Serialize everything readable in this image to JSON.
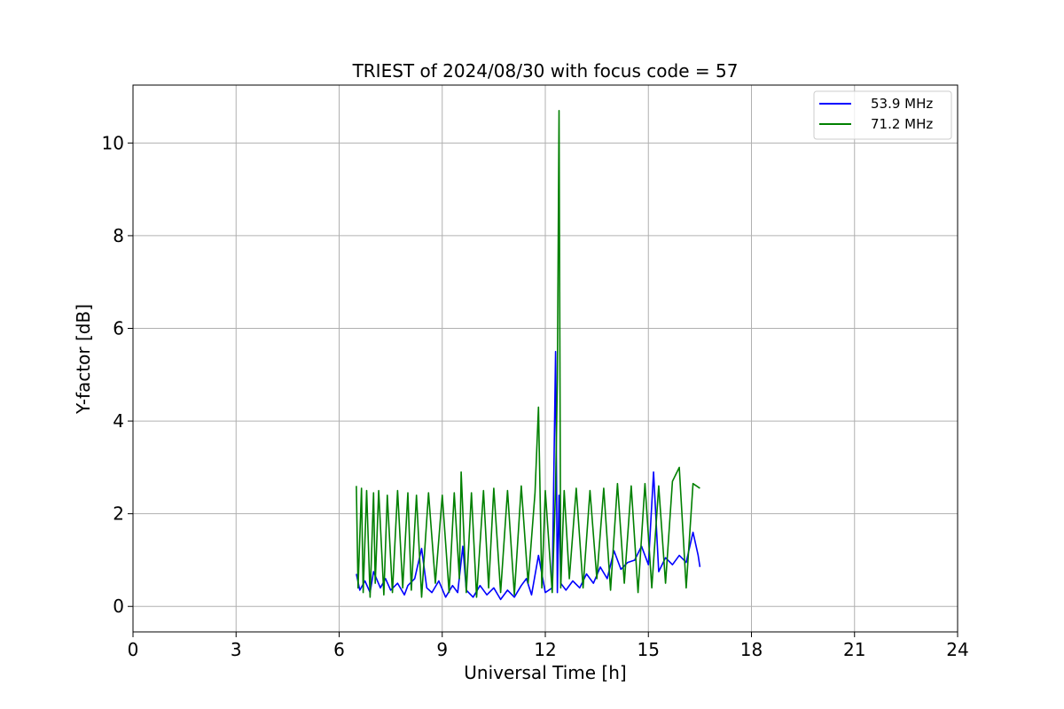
{
  "chart_data": {
    "type": "line",
    "title": "TRIEST of 2024/08/30 with focus code = 57",
    "xlabel": "Universal Time [h]",
    "ylabel": "Y-factor [dB]",
    "xlim": [
      0,
      24
    ],
    "ylim": [
      -0.55,
      11.25
    ],
    "x_ticks": [
      0,
      3,
      6,
      9,
      12,
      15,
      18,
      21,
      24
    ],
    "y_ticks": [
      0,
      2,
      4,
      6,
      8,
      10
    ],
    "grid": true,
    "legend_position": "top-right",
    "series": [
      {
        "name": "53.9 MHz",
        "color": "#0000ff",
        "x": [
          6.5,
          6.6,
          6.75,
          6.9,
          7.0,
          7.2,
          7.35,
          7.5,
          7.7,
          7.9,
          8.0,
          8.2,
          8.4,
          8.55,
          8.7,
          8.9,
          9.1,
          9.3,
          9.45,
          9.6,
          9.7,
          9.9,
          10.1,
          10.3,
          10.5,
          10.7,
          10.9,
          11.1,
          11.3,
          11.45,
          11.6,
          11.8,
          12.0,
          12.2,
          12.3,
          12.35,
          12.4,
          12.45,
          12.6,
          12.8,
          13.0,
          13.2,
          13.4,
          13.6,
          13.8,
          14.0,
          14.2,
          14.4,
          14.6,
          14.8,
          15.0,
          15.15,
          15.3,
          15.5,
          15.7,
          15.9,
          16.1,
          16.3,
          16.45,
          16.5
        ],
        "y": [
          0.7,
          0.35,
          0.55,
          0.3,
          0.75,
          0.4,
          0.6,
          0.35,
          0.5,
          0.25,
          0.45,
          0.6,
          1.25,
          0.4,
          0.3,
          0.55,
          0.2,
          0.45,
          0.3,
          1.3,
          0.35,
          0.2,
          0.45,
          0.25,
          0.4,
          0.15,
          0.35,
          0.2,
          0.45,
          0.6,
          0.25,
          1.1,
          0.3,
          0.4,
          5.5,
          0.3,
          2.4,
          0.5,
          0.35,
          0.55,
          0.4,
          0.7,
          0.5,
          0.85,
          0.6,
          1.2,
          0.8,
          0.95,
          1.0,
          1.3,
          0.9,
          2.9,
          0.75,
          1.05,
          0.9,
          1.1,
          0.95,
          1.6,
          1.1,
          0.85
        ]
      },
      {
        "name": "71.2 MHz",
        "color": "#008000",
        "x": [
          6.5,
          6.55,
          6.65,
          6.7,
          6.8,
          6.9,
          7.0,
          7.05,
          7.15,
          7.3,
          7.4,
          7.55,
          7.7,
          7.85,
          8.0,
          8.1,
          8.25,
          8.4,
          8.6,
          8.8,
          9.0,
          9.2,
          9.35,
          9.5,
          9.55,
          9.7,
          9.85,
          10.0,
          10.2,
          10.35,
          10.5,
          10.7,
          10.9,
          11.1,
          11.3,
          11.5,
          11.7,
          11.8,
          11.9,
          12.0,
          12.2,
          12.3,
          12.35,
          12.4,
          12.45,
          12.55,
          12.7,
          12.9,
          13.1,
          13.3,
          13.5,
          13.7,
          13.9,
          14.1,
          14.3,
          14.5,
          14.7,
          14.9,
          15.1,
          15.3,
          15.5,
          15.7,
          15.9,
          16.1,
          16.3,
          16.5
        ],
        "y": [
          2.6,
          0.4,
          2.55,
          0.3,
          2.5,
          0.2,
          2.45,
          0.5,
          2.5,
          0.25,
          2.4,
          0.3,
          2.5,
          0.4,
          2.45,
          0.35,
          2.4,
          0.2,
          2.45,
          0.5,
          2.4,
          0.3,
          2.45,
          0.6,
          2.9,
          0.3,
          2.45,
          0.2,
          2.5,
          0.4,
          2.55,
          0.3,
          2.5,
          0.25,
          2.6,
          0.5,
          2.45,
          4.3,
          0.4,
          2.5,
          0.3,
          2.55,
          4.9,
          10.7,
          0.4,
          2.5,
          0.6,
          2.55,
          0.4,
          2.5,
          0.6,
          2.55,
          0.35,
          2.65,
          0.5,
          2.6,
          0.3,
          2.65,
          0.4,
          2.6,
          0.5,
          2.7,
          3.0,
          0.4,
          2.65,
          2.55
        ]
      }
    ]
  }
}
